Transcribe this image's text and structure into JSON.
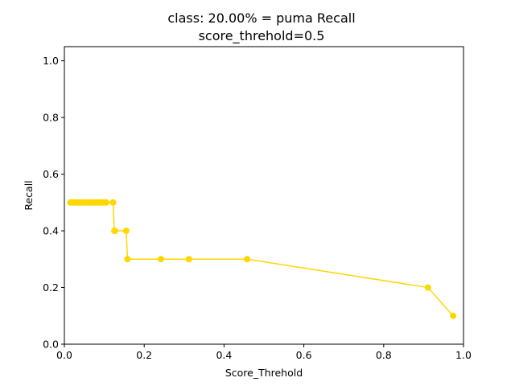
{
  "chart_data": {
    "type": "line",
    "title": "class: 20.00% = puma Recall",
    "subtitle": "score_threhold=0.5",
    "xlabel": "Score_Threhold",
    "ylabel": "Recall",
    "xlim": [
      0.0,
      1.0
    ],
    "ylim": [
      0.0,
      1.05
    ],
    "xticks": [
      0.0,
      0.2,
      0.4,
      0.6,
      0.8,
      1.0
    ],
    "xtick_labels": [
      "0.0",
      "0.2",
      "0.4",
      "0.6",
      "0.8",
      "1.0"
    ],
    "yticks": [
      0.0,
      0.2,
      0.4,
      0.6,
      0.8,
      1.0
    ],
    "ytick_labels": [
      "0.0",
      "0.2",
      "0.4",
      "0.6",
      "0.8",
      "1.0"
    ],
    "grid": false,
    "series": [
      {
        "color": "#ffd700",
        "marker": "circle",
        "x": [
          0.015,
          0.02,
          0.025,
          0.03,
          0.035,
          0.04,
          0.045,
          0.05,
          0.055,
          0.06,
          0.065,
          0.07,
          0.075,
          0.08,
          0.085,
          0.09,
          0.095,
          0.1,
          0.105,
          0.122,
          0.125,
          0.127,
          0.155,
          0.158,
          0.242,
          0.312,
          0.458,
          0.911,
          0.974
        ],
        "y": [
          0.5,
          0.5,
          0.5,
          0.5,
          0.5,
          0.5,
          0.5,
          0.5,
          0.5,
          0.5,
          0.5,
          0.5,
          0.5,
          0.5,
          0.5,
          0.5,
          0.5,
          0.5,
          0.5,
          0.5,
          0.4,
          0.4,
          0.4,
          0.3,
          0.3,
          0.3,
          0.3,
          0.2,
          0.1
        ]
      }
    ]
  }
}
